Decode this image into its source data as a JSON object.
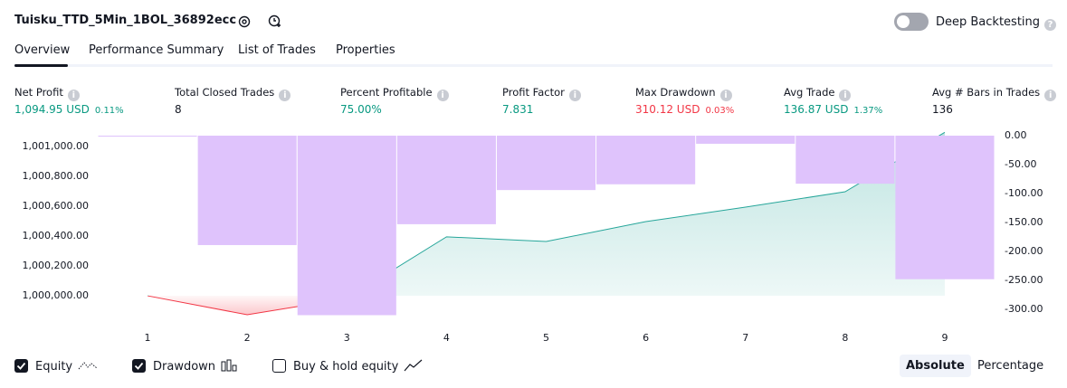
{
  "header": {
    "title": "Tuisku_TTD_5Min_1BOL_36892ecc",
    "toggle_label": "Deep Backtesting"
  },
  "tabs": [
    "Overview",
    "Performance Summary",
    "List of Trades",
    "Properties"
  ],
  "metrics": [
    {
      "label": "Net Profit",
      "value": "1,094.95 USD",
      "percent": "0.11%",
      "tone": "g"
    },
    {
      "label": "Total Closed Trades",
      "value": "8",
      "tone": ""
    },
    {
      "label": "Percent Profitable",
      "value": "75.00%",
      "tone": "g"
    },
    {
      "label": "Profit Factor",
      "value": "7.831",
      "tone": "g"
    },
    {
      "label": "Max Drawdown",
      "value": "310.12 USD",
      "percent": "0.03%",
      "tone": "r"
    },
    {
      "label": "Avg Trade",
      "value": "136.87 USD",
      "percent": "1.37%",
      "tone": "g"
    },
    {
      "label": "Avg # Bars in Trades",
      "value": "136",
      "tone": ""
    }
  ],
  "chart_data": {
    "type": "line",
    "categories": [
      "1",
      "2",
      "3",
      "4",
      "5",
      "6",
      "7",
      "8",
      "9"
    ],
    "series": [
      {
        "name": "Equity",
        "color": "#26a69a",
        "negative_color": "#f23645",
        "visible": true,
        "values": [
          1000000,
          999873,
          999982,
          1000395,
          1000364,
          1000497,
          1000594,
          1000697,
          1001095
        ]
      },
      {
        "name": "Drawdown",
        "type": "bar",
        "axis": "y2",
        "color": "#dfc3fc",
        "visible": true,
        "values": [
          0,
          -189,
          -310.12,
          -153,
          -94,
          -84,
          -14,
          -83,
          -248
        ]
      }
    ],
    "ylim": [
      999861,
      1001097
    ],
    "yticks": [
      {
        "value": 1000000,
        "label": "1,000,000.00"
      },
      {
        "value": 1000200,
        "label": "1,000,200.00"
      },
      {
        "value": 1000400,
        "label": "1,000,400.00"
      },
      {
        "value": 1000600,
        "label": "1,000,600.00"
      },
      {
        "value": 1000800,
        "label": "1,000,800.00"
      },
      {
        "value": 1001000,
        "label": "1,001,000.00"
      }
    ],
    "y2lim": [
      -312.5,
      6.25
    ],
    "y2ticks": [
      {
        "value": 0,
        "label": "0.00"
      },
      {
        "value": -50,
        "label": "-50.00"
      },
      {
        "value": -100,
        "label": "-100.00"
      },
      {
        "value": -150,
        "label": "-150.00"
      },
      {
        "value": -200,
        "label": "-200.00"
      },
      {
        "value": -250,
        "label": "-250.00"
      },
      {
        "value": -300,
        "label": "-300.00"
      }
    ],
    "grid": false
  },
  "legend_extra": {
    "label": "Buy & hold equity",
    "checked": false
  },
  "scale_buttons": [
    {
      "label": "Absolute",
      "active": true
    },
    {
      "label": "Percentage",
      "active": false
    }
  ]
}
